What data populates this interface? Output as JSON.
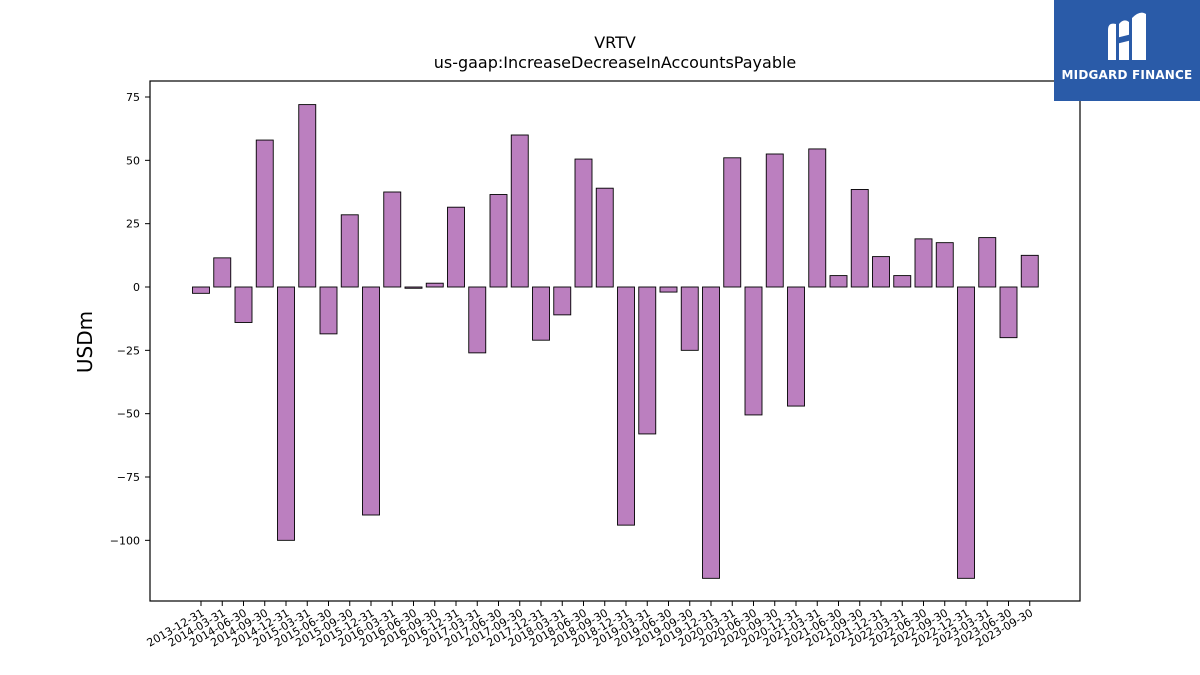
{
  "chart_data": {
    "type": "bar",
    "title": "VRTV",
    "subtitle": "us-gaap:IncreaseDecreaseInAccountsPayable",
    "xlabel": "",
    "ylabel": "USDm",
    "ylim": [
      -125,
      82
    ],
    "yticks": [
      75,
      50,
      25,
      0,
      -25,
      -50,
      -75,
      -100
    ],
    "ytick_labels": [
      "75",
      "50",
      "25",
      "0",
      "−25",
      "−50",
      "−75",
      "−100"
    ],
    "bar_color": "#bb7fbf",
    "categories": [
      "2013-12-31",
      "2014-03-31",
      "2014-06-30",
      "2014-09-30",
      "2014-12-31",
      "2015-03-31",
      "2015-06-30",
      "2015-09-30",
      "2015-12-31",
      "2016-03-31",
      "2016-06-30",
      "2016-09-30",
      "2016-12-31",
      "2017-03-31",
      "2017-06-30",
      "2017-09-30",
      "2017-12-31",
      "2018-03-31",
      "2018-06-30",
      "2018-09-30",
      "2018-12-31",
      "2019-03-31",
      "2019-06-30",
      "2019-09-30",
      "2019-12-31",
      "2020-03-31",
      "2020-06-30",
      "2020-09-30",
      "2020-12-31",
      "2021-03-31",
      "2021-06-30",
      "2021-09-30",
      "2021-12-31",
      "2022-03-31",
      "2022-06-30",
      "2022-09-30",
      "2022-12-31",
      "2023-03-31",
      "2023-06-30",
      "2023-09-30"
    ],
    "values": [
      -2.5,
      11.5,
      -14,
      58,
      -100,
      72,
      -18.5,
      28.5,
      -90,
      37.5,
      -0.5,
      1.5,
      31.5,
      -26,
      36.5,
      60,
      -21,
      -11,
      50.5,
      39,
      -94,
      -58,
      -2,
      -25,
      -115,
      51,
      -50.5,
      52.5,
      -47,
      54.5,
      4.5,
      38.5,
      12,
      4.5,
      19,
      17.5,
      -115,
      19.5,
      -20,
      12.5
    ]
  },
  "logo": {
    "text": "MIDGARD FINANCE"
  }
}
